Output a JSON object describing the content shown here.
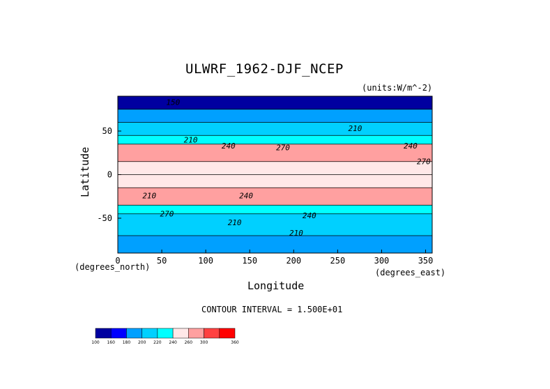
{
  "chart_data": {
    "type": "heatmap",
    "title": "ULWRF_1962-DJF_NCEP",
    "units_label": "(units:W/m^-2)",
    "xlabel": "Longitude",
    "ylabel": "Latitude",
    "x_unit_label": "(degrees_east)",
    "y_unit_label": "(degrees_north)",
    "xlim": [
      0,
      357.5
    ],
    "ylim": [
      -90,
      90
    ],
    "xticks": [
      "0",
      "50",
      "100",
      "150",
      "200",
      "250",
      "300",
      "350"
    ],
    "yticks": [
      "50",
      "0",
      "-50"
    ],
    "contour_interval_text": "CONTOUR INTERVAL = 1.500E+01",
    "contour_labels": [
      "150",
      "210",
      "240",
      "270",
      "210",
      "240",
      "270",
      "240",
      "210",
      "210",
      "210",
      "240",
      "270"
    ],
    "colorbar": {
      "levels": [
        "100",
        "160",
        "180",
        "200",
        "220",
        "240",
        "260",
        "300",
        "360"
      ],
      "colors": [
        "#0000a0",
        "#0000ff",
        "#00a0ff",
        "#00d0ff",
        "#00ffff",
        "#ffe8e8",
        "#ffa0a0",
        "#ff4040",
        "#ff0000"
      ]
    },
    "zonal_bands": [
      {
        "lat_min": 75,
        "lat_max": 90,
        "value": 150
      },
      {
        "lat_min": 60,
        "lat_max": 75,
        "value": 185
      },
      {
        "lat_min": 45,
        "lat_max": 60,
        "value": 200
      },
      {
        "lat_min": 35,
        "lat_max": 45,
        "value": 225
      },
      {
        "lat_min": 15,
        "lat_max": 35,
        "value": 275
      },
      {
        "lat_min": 0,
        "lat_max": 15,
        "value": 255
      },
      {
        "lat_min": -15,
        "lat_max": 0,
        "value": 245
      },
      {
        "lat_min": -35,
        "lat_max": -15,
        "value": 270
      },
      {
        "lat_min": -45,
        "lat_max": -35,
        "value": 230
      },
      {
        "lat_min": -70,
        "lat_max": -45,
        "value": 205
      },
      {
        "lat_min": -90,
        "lat_max": -70,
        "value": 195
      }
    ]
  }
}
